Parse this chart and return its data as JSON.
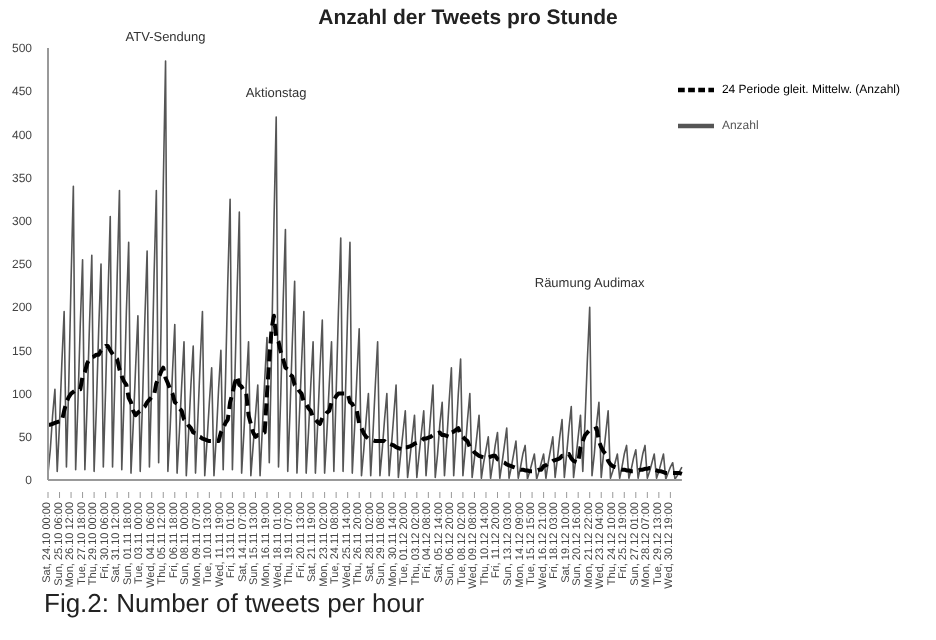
{
  "chart_data": {
    "type": "line",
    "title": "Anzahl der Tweets pro Stunde",
    "categories": [
      "Sat, 24.10 00:00",
      null,
      null,
      null,
      null,
      "Sun, 25.10 06:00",
      null,
      null,
      null,
      null,
      "Mon, 26.10 12:00",
      null,
      null,
      null,
      null,
      "Tue, 27.10 18:00",
      null,
      null,
      null,
      null,
      "Thu, 29.10 00:00",
      null,
      null,
      null,
      null,
      "Fri, 30.10 06:00",
      null,
      null,
      null,
      null,
      "Sat, 31.10 12:00",
      null,
      null,
      null,
      null,
      "Sun, 01.11 18:00",
      null,
      null,
      null,
      null,
      "Tue, 03.11 00:00",
      null,
      null,
      null,
      null,
      "Wed, 04.11 06:00",
      null,
      null,
      null,
      null,
      "Thu, 05.11 12:00",
      null,
      null,
      null,
      null,
      "Fri, 06.11 18:00",
      null,
      null,
      null,
      null,
      "Sun, 08.11 00:00",
      null,
      null,
      null,
      null,
      "Mon, 09.11 07:00",
      null,
      null,
      null,
      null,
      "Tue, 10.11 13:00",
      null,
      null,
      null,
      null,
      "Wed, 11.11 19:00",
      null,
      null,
      null,
      null,
      "Fri, 13.11 01:00",
      null,
      null,
      null,
      null,
      "Sat, 14.11 07:00",
      null,
      null,
      null,
      null,
      "Sun, 15.11 13:00",
      null,
      null,
      null,
      null,
      "Mon, 16.11 19:00",
      null,
      null,
      null,
      null,
      "Wed, 18.11 01:00",
      null,
      null,
      null,
      null,
      "Thu, 19.11 07:00",
      null,
      null,
      null,
      null,
      "Fri, 20.11 13:00",
      null,
      null,
      null,
      null,
      "Sat, 21.11 19:00",
      null,
      null,
      null,
      null,
      "Mon, 23.11 02:00",
      null,
      null,
      null,
      null,
      "Tue, 24.11 08:00",
      null,
      null,
      null,
      null,
      "Wed, 25.11 14:00",
      null,
      null,
      null,
      null,
      "Thu, 26.11 20:00",
      null,
      null,
      null,
      null,
      "Sat, 28.11 02:00",
      null,
      null,
      null,
      null,
      "Sun, 29.11 08:00",
      null,
      null,
      null,
      null,
      "Mon, 30.11 14:00",
      null,
      null,
      null,
      null,
      "Tue, 01.12 20:00",
      null,
      null,
      null,
      null,
      "Thu, 03.12 02:00",
      null,
      null,
      null,
      null,
      "Fri, 04.12 08:00",
      null,
      null,
      null,
      null,
      "Sat, 05.12 14:00",
      null,
      null,
      null,
      null,
      "Sun, 06.12 20:00",
      null,
      null,
      null,
      null,
      "Tue, 08.12 02:00",
      null,
      null,
      null,
      null,
      "Wed, 09.12 08:00",
      null,
      null,
      null,
      null,
      "Thu, 10.12 14:00",
      null,
      null,
      null,
      null,
      "Fri, 11.12 20:00",
      null,
      null,
      null,
      null,
      "Sun, 13.12 03:00",
      null,
      null,
      null,
      null,
      "Mon, 14.12 09:00",
      null,
      null,
      null,
      null,
      "Tue, 15.12 15:00",
      null,
      null,
      null,
      null,
      "Wed, 16.12 21:00",
      null,
      null,
      null,
      null,
      "Fri, 18.12 03:00",
      null,
      null,
      null,
      null,
      "Sat, 19.12 10:00",
      null,
      null,
      null,
      null,
      "Sun, 20.12 16:00",
      null,
      null,
      null,
      null,
      "Mon, 21.12 22:00",
      null,
      null,
      null,
      null,
      "Wed, 23.12 04:00",
      null,
      null,
      null,
      null,
      "Thu, 24.12 10:00",
      null,
      null,
      null,
      null,
      "Fri, 25.12 19:00",
      null,
      null,
      null,
      null,
      "Sun, 27.12 01:00",
      null,
      null,
      null,
      null,
      "Mon, 28.12 07:00",
      null,
      null,
      null,
      null,
      "Tue, 29.12 13:00",
      null,
      null,
      null,
      null,
      "Wed, 30.12 19:00",
      null,
      null,
      null,
      null,
      null
    ],
    "series": [
      {
        "name": "Anzahl",
        "color": "#555555",
        "line_style": "solid",
        "values": [
          8,
          35,
          75,
          105,
          10,
          65,
          135,
          195,
          15,
          110,
          230,
          340,
          12,
          90,
          180,
          255,
          12,
          90,
          180,
          260,
          10,
          85,
          175,
          250,
          15,
          105,
          210,
          305,
          15,
          115,
          235,
          335,
          12,
          95,
          195,
          275,
          8,
          65,
          130,
          190,
          10,
          90,
          185,
          265,
          15,
          115,
          235,
          335,
          20,
          170,
          340,
          485,
          10,
          60,
          125,
          180,
          8,
          55,
          110,
          160,
          5,
          55,
          110,
          155,
          8,
          70,
          135,
          195,
          5,
          45,
          90,
          130,
          5,
          50,
          105,
          150,
          12,
          115,
          230,
          325,
          12,
          110,
          215,
          310,
          8,
          55,
          110,
          160,
          5,
          40,
          75,
          110,
          5,
          60,
          115,
          165,
          20,
          150,
          295,
          420,
          15,
          100,
          205,
          290,
          10,
          80,
          160,
          230,
          8,
          70,
          135,
          195,
          8,
          55,
          110,
          160,
          8,
          65,
          130,
          185,
          8,
          55,
          110,
          160,
          10,
          100,
          195,
          280,
          10,
          95,
          195,
          275,
          8,
          60,
          120,
          175,
          5,
          35,
          70,
          100,
          5,
          55,
          110,
          160,
          5,
          35,
          70,
          100,
          5,
          40,
          75,
          110,
          3,
          30,
          55,
          80,
          3,
          25,
          50,
          75,
          3,
          30,
          55,
          80,
          5,
          40,
          75,
          110,
          3,
          30,
          65,
          90,
          5,
          45,
          90,
          130,
          5,
          50,
          100,
          140,
          5,
          35,
          70,
          100,
          3,
          25,
          50,
          75,
          2,
          20,
          35,
          50,
          2,
          20,
          40,
          55,
          2,
          20,
          40,
          60,
          2,
          15,
          30,
          45,
          2,
          15,
          30,
          40,
          1,
          10,
          20,
          30,
          1,
          10,
          20,
          30,
          2,
          20,
          35,
          50,
          3,
          25,
          50,
          70,
          3,
          30,
          60,
          85,
          3,
          25,
          50,
          75,
          10,
          70,
          140,
          200,
          5,
          30,
          65,
          90,
          3,
          30,
          55,
          80,
          2,
          10,
          20,
          30,
          2,
          15,
          30,
          40,
          2,
          12,
          25,
          35,
          2,
          15,
          30,
          40,
          2,
          10,
          20,
          30,
          2,
          10,
          20,
          30,
          1,
          8,
          15,
          20,
          1,
          5,
          10,
          15
        ]
      },
      {
        "name": "24 Periode gleit. Mittelw. (Anzahl)",
        "color": "#000000",
        "line_style": "dashed",
        "values": [
          64,
          64,
          65,
          66,
          67,
          68,
          68,
          80,
          90,
          96,
          100,
          102,
          104,
          105,
          105,
          120,
          125,
          135,
          140,
          142,
          143,
          145,
          145,
          150,
          152,
          155,
          155,
          150,
          146,
          142,
          140,
          128,
          120,
          114,
          110,
          95,
          90,
          80,
          75,
          78,
          80,
          83,
          85,
          90,
          93,
          96,
          98,
          112,
          118,
          125,
          130,
          118,
          112,
          105,
          100,
          90,
          88,
          83,
          80,
          70,
          68,
          63,
          60,
          55,
          54,
          51,
          50,
          48,
          47,
          46,
          45,
          45,
          45,
          45,
          45,
          55,
          60,
          66,
          70,
          90,
          100,
          112,
          120,
          110,
          108,
          103,
          100,
          75,
          65,
          55,
          50,
          52,
          52,
          54,
          55,
          100,
          140,
          175,
          190,
          165,
          160,
          148,
          140,
          130,
          128,
          122,
          120,
          110,
          108,
          103,
          100,
          90,
          88,
          83,
          80,
          72,
          70,
          67,
          65,
          72,
          74,
          78,
          80,
          90,
          92,
          97,
          100,
          100,
          100,
          100,
          100,
          90,
          88,
          83,
          80,
          65,
          60,
          54,
          50,
          48,
          47,
          46,
          45,
          45,
          45,
          45,
          45,
          42,
          42,
          41,
          40,
          38,
          37,
          36,
          35,
          38,
          38,
          39,
          40,
          42,
          43,
          44,
          45,
          48,
          48,
          49,
          50,
          52,
          53,
          54,
          55,
          52,
          52,
          51,
          50,
          55,
          56,
          58,
          60,
          52,
          50,
          47,
          45,
          38,
          36,
          32,
          30,
          28,
          27,
          26,
          25,
          26,
          27,
          28,
          28,
          24,
          23,
          21,
          20,
          18,
          17,
          16,
          15,
          14,
          13,
          12,
          12,
          11,
          11,
          10,
          10,
          11,
          11,
          12,
          12,
          16,
          17,
          19,
          20,
          22,
          23,
          24,
          25,
          28,
          28,
          29,
          30,
          25,
          22,
          21,
          20,
          38,
          45,
          52,
          55,
          58,
          58,
          59,
          60,
          45,
          38,
          33,
          30,
          22,
          18,
          16,
          15,
          14,
          13,
          12,
          12,
          11,
          11,
          10,
          10,
          11,
          11,
          12,
          12,
          13,
          13,
          14,
          14,
          12,
          11,
          10,
          10,
          9,
          8,
          8,
          8,
          8,
          8,
          8,
          8,
          7
        ]
      }
    ],
    "ylim": [
      0,
      500
    ],
    "yticks": [
      0,
      50,
      100,
      150,
      200,
      250,
      300,
      350,
      400,
      450,
      500
    ],
    "grid": false,
    "legend": "top right",
    "marker": "none",
    "annotations": [
      {
        "text": "ATV-Sendung",
        "y": 485
      },
      {
        "text": "Aktionstag",
        "y": 420
      },
      {
        "text": "Räumung Audimax",
        "y": 200
      },
      "Fig.2: Number of tweets per hour"
    ]
  }
}
